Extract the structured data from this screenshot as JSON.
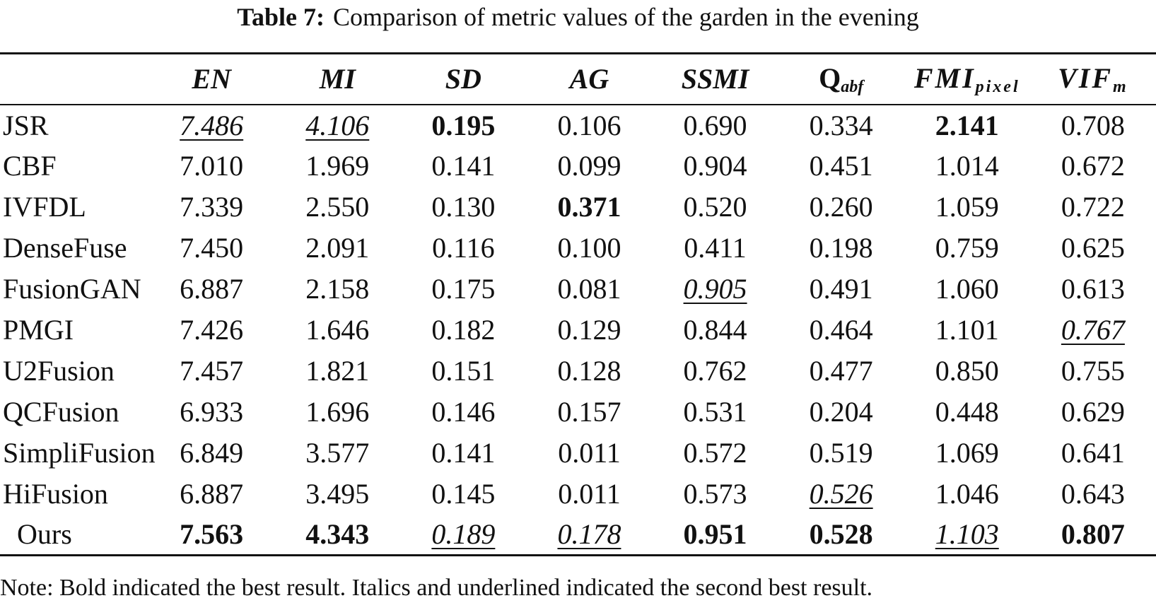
{
  "caption": {
    "label": "Table 7:",
    "text": "Comparison of metric values of the garden in the evening"
  },
  "table": {
    "headers": {
      "method": "",
      "en": "EN",
      "mi": "MI",
      "sd": "SD",
      "ag": "AG",
      "ssmi": "SSMI",
      "qabf_base": "Q",
      "qabf_sub": "abf",
      "fmi_base": "FMI",
      "fmi_sub": "pixel",
      "vif_base": "VIF",
      "vif_sub": "m"
    },
    "rows": [
      {
        "method": "JSR",
        "en": "7.486",
        "mi": "4.106",
        "sd": "0.195",
        "ag": "0.106",
        "ssmi": "0.690",
        "qabf": "0.334",
        "fmi": "2.141",
        "vif": "0.708"
      },
      {
        "method": "CBF",
        "en": "7.010",
        "mi": "1.969",
        "sd": "0.141",
        "ag": "0.099",
        "ssmi": "0.904",
        "qabf": "0.451",
        "fmi": "1.014",
        "vif": "0.672"
      },
      {
        "method": "IVFDL",
        "en": "7.339",
        "mi": "2.550",
        "sd": "0.130",
        "ag": "0.371",
        "ssmi": "0.520",
        "qabf": "0.260",
        "fmi": "1.059",
        "vif": "0.722"
      },
      {
        "method": "DenseFuse",
        "en": "7.450",
        "mi": "2.091",
        "sd": "0.116",
        "ag": "0.100",
        "ssmi": "0.411",
        "qabf": "0.198",
        "fmi": "0.759",
        "vif": "0.625"
      },
      {
        "method": "FusionGAN",
        "en": "6.887",
        "mi": "2.158",
        "sd": "0.175",
        "ag": "0.081",
        "ssmi": "0.905",
        "qabf": "0.491",
        "fmi": "1.060",
        "vif": "0.613"
      },
      {
        "method": "PMGI",
        "en": "7.426",
        "mi": "1.646",
        "sd": "0.182",
        "ag": "0.129",
        "ssmi": "0.844",
        "qabf": "0.464",
        "fmi": "1.101",
        "vif": "0.767"
      },
      {
        "method": "U2Fusion",
        "en": "7.457",
        "mi": "1.821",
        "sd": "0.151",
        "ag": "0.128",
        "ssmi": "0.762",
        "qabf": "0.477",
        "fmi": "0.850",
        "vif": "0.755"
      },
      {
        "method": "QCFusion",
        "en": "6.933",
        "mi": "1.696",
        "sd": "0.146",
        "ag": "0.157",
        "ssmi": "0.531",
        "qabf": "0.204",
        "fmi": "0.448",
        "vif": "0.629"
      },
      {
        "method": "SimpliFusion",
        "en": "6.849",
        "mi": "3.577",
        "sd": "0.141",
        "ag": "0.011",
        "ssmi": "0.572",
        "qabf": "0.519",
        "fmi": "1.069",
        "vif": "0.641"
      },
      {
        "method": "HiFusion",
        "en": "6.887",
        "mi": "3.495",
        "sd": "0.145",
        "ag": "0.011",
        "ssmi": "0.573",
        "qabf": "0.526",
        "fmi": "1.046",
        "vif": "0.643"
      },
      {
        "method": "Ours",
        "en": "7.563",
        "mi": "4.343",
        "sd": "0.189",
        "ag": "0.178",
        "ssmi": "0.951",
        "qabf": "0.528",
        "fmi": "1.103",
        "vif": "0.807"
      }
    ]
  },
  "note": "Note: Bold indicated the best result. Italics and underlined indicated the second best result."
}
